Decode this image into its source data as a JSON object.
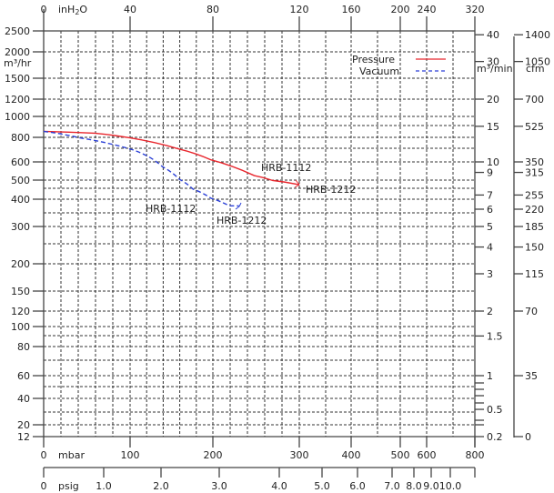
{
  "chart_data": {
    "type": "line",
    "title": "",
    "xlabel": "mbar",
    "ylabel": "m³/hr",
    "x_scale": "nonlinear",
    "y_scale": "log",
    "xlim": [
      0,
      800
    ],
    "ylim": [
      12,
      2500
    ],
    "grid": true,
    "legend_position": "top-right",
    "x_ticks_mbar": [
      "0",
      "100",
      "200",
      "300",
      "400",
      "500",
      "600",
      "800"
    ],
    "x_ticks_mbar_values": [
      0,
      100,
      200,
      300,
      400,
      500,
      600,
      800
    ],
    "x_unit_mbar": "mbar",
    "top_axis": {
      "unit": "inH2O",
      "unit_label": "inH",
      "unit_sub": "2",
      "unit_suffix": "O",
      "ticks": [
        "0",
        "40",
        "80",
        "120",
        "160",
        "200",
        "240",
        "320"
      ],
      "tick_mbar": [
        0,
        100,
        200,
        300,
        400,
        500,
        600,
        800
      ]
    },
    "psig_axis": {
      "unit": "psig",
      "ticks": [
        "0",
        "1.0",
        "2.0",
        "3.0",
        "4.0",
        "5.0",
        "6.0",
        "7.0",
        "8.0",
        "9.0",
        "10.0"
      ],
      "tick_mbar": [
        0,
        69,
        138,
        207,
        276,
        345,
        414,
        483,
        552,
        621,
        690
      ]
    },
    "y_ticks_left": [
      "2500",
      "2000",
      "1500",
      "1200",
      "1000",
      "800",
      "600",
      "500",
      "400",
      "300",
      "200",
      "150",
      "120",
      "100",
      "80",
      "60",
      "40",
      "20",
      "12"
    ],
    "y_ticks_left_values": [
      2500,
      2000,
      1500,
      1200,
      1000,
      800,
      600,
      500,
      400,
      300,
      200,
      150,
      120,
      100,
      80,
      60,
      40,
      20,
      12
    ],
    "y_unit_left": "m³/hr",
    "right_axis_m3min": {
      "unit": "m³/min",
      "ticks": [
        "40",
        "30",
        "20",
        "15",
        "10",
        "9",
        "7",
        "6",
        "5",
        "4",
        "3",
        "2",
        "1.5",
        "1",
        "0.5",
        "0.2"
      ],
      "tick_m3hr": [
        2400,
        1800,
        1200,
        900,
        600,
        540,
        420,
        360,
        300,
        240,
        180,
        120,
        90,
        60,
        30,
        12
      ]
    },
    "right_axis_cfm": {
      "unit": "cfm",
      "ticks": [
        "1400",
        "1050",
        "700",
        "525",
        "350",
        "315",
        "255",
        "220",
        "185",
        "150",
        "115",
        "70",
        "35",
        "0"
      ],
      "tick_m3hr": [
        2400,
        1800,
        1200,
        900,
        600,
        540,
        420,
        360,
        300,
        240,
        180,
        120,
        60,
        12
      ]
    },
    "legend": [
      {
        "name": "Pressure",
        "color": "#e8262d",
        "style": "solid"
      },
      {
        "name": "Vacuum",
        "color": "#2a3fd6",
        "style": "dashed"
      }
    ],
    "series": [
      {
        "name": "Pressure",
        "color": "#e8262d",
        "x": [
          0,
          59,
          100,
          159,
          198,
          248,
          269,
          300
        ],
        "y": [
          853,
          836,
          795,
          698,
          614,
          523,
          498,
          474
        ]
      },
      {
        "name": "Vacuum",
        "color": "#2a3fd6",
        "x": [
          0,
          42,
          100,
          120,
          139,
          160,
          176,
          198,
          219,
          230
        ],
        "y": [
          853,
          795,
          698,
          645,
          572,
          503,
          450,
          404,
          373,
          373
        ]
      }
    ],
    "annotations": [
      {
        "text": "HRB-1112",
        "series": "Pressure",
        "x": 250,
        "y": 530
      },
      {
        "text": "HRB-1212",
        "series": "Pressure",
        "x": 300,
        "y": 474
      },
      {
        "text": "HRB-1112",
        "series": "Vacuum",
        "x": 198,
        "y": 404
      },
      {
        "text": "HRB-1212",
        "series": "Vacuum",
        "x": 230,
        "y": 373
      }
    ]
  }
}
